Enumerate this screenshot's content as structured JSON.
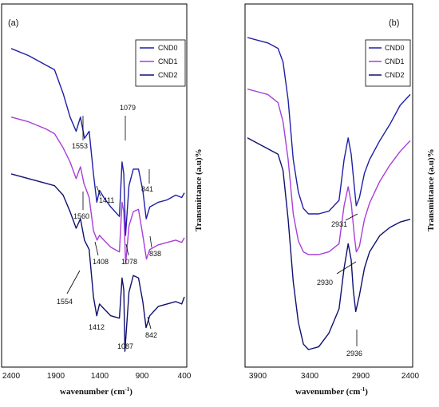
{
  "chart_data": [
    {
      "type": "line",
      "panel_label": "(a)",
      "xlabel": "wavenumber (cm",
      "xlabel_sup": "-1",
      "xlabel_end": ")",
      "ylabel": "Transmittance (a.u)%",
      "xlim": [
        2400,
        400
      ],
      "x_ticks": [
        "2400",
        "1900",
        "1400",
        "900",
        "400"
      ],
      "legend": [
        "CND0",
        "CND1",
        "CND2"
      ],
      "series": [
        {
          "name": "CND0",
          "color": "#1f1fa8",
          "offset": 0,
          "points": [
            [
              2400,
              0.93
            ],
            [
              2200,
              0.9
            ],
            [
              2000,
              0.86
            ],
            [
              1900,
              0.84
            ],
            [
              1800,
              0.74
            ],
            [
              1720,
              0.64
            ],
            [
              1650,
              0.58
            ],
            [
              1600,
              0.64
            ],
            [
              1553,
              0.55
            ],
            [
              1500,
              0.58
            ],
            [
              1450,
              0.4
            ],
            [
              1411,
              0.28
            ],
            [
              1380,
              0.33
            ],
            [
              1330,
              0.3
            ],
            [
              1250,
              0.26
            ],
            [
              1150,
              0.22
            ],
            [
              1120,
              0.45
            ],
            [
              1100,
              0.4
            ],
            [
              1079,
              0.14
            ],
            [
              1040,
              0.35
            ],
            [
              990,
              0.42
            ],
            [
              930,
              0.42
            ],
            [
              880,
              0.33
            ],
            [
              841,
              0.21
            ],
            [
              800,
              0.26
            ],
            [
              700,
              0.28
            ],
            [
              600,
              0.29
            ],
            [
              500,
              0.31
            ],
            [
              430,
              0.3
            ],
            [
              400,
              0.32
            ]
          ]
        },
        {
          "name": "CND1",
          "color": "#a83fd8",
          "offset": 0,
          "points": [
            [
              2400,
              0.64
            ],
            [
              2200,
              0.62
            ],
            [
              2000,
              0.59
            ],
            [
              1900,
              0.57
            ],
            [
              1800,
              0.51
            ],
            [
              1720,
              0.45
            ],
            [
              1650,
              0.38
            ],
            [
              1600,
              0.43
            ],
            [
              1560,
              0.36
            ],
            [
              1500,
              0.3
            ],
            [
              1450,
              0.16
            ],
            [
              1408,
              0.12
            ],
            [
              1380,
              0.14
            ],
            [
              1330,
              0.12
            ],
            [
              1250,
              0.09
            ],
            [
              1150,
              0.07
            ],
            [
              1120,
              0.28
            ],
            [
              1100,
              0.24
            ],
            [
              1078,
              0.02
            ],
            [
              1040,
              0.18
            ],
            [
              990,
              0.24
            ],
            [
              930,
              0.25
            ],
            [
              880,
              0.14
            ],
            [
              838,
              0.04
            ],
            [
              800,
              0.08
            ],
            [
              700,
              0.1
            ],
            [
              600,
              0.11
            ],
            [
              500,
              0.12
            ],
            [
              430,
              0.11
            ],
            [
              400,
              0.13
            ]
          ]
        },
        {
          "name": "CND2",
          "color": "#101070",
          "offset": 0,
          "points": [
            [
              2400,
              0.4
            ],
            [
              2200,
              0.38
            ],
            [
              2000,
              0.36
            ],
            [
              1900,
              0.35
            ],
            [
              1800,
              0.31
            ],
            [
              1720,
              0.24
            ],
            [
              1650,
              0.17
            ],
            [
              1600,
              0.21
            ],
            [
              1554,
              0.12
            ],
            [
              1500,
              0.08
            ],
            [
              1450,
              -0.12
            ],
            [
              1412,
              -0.2
            ],
            [
              1380,
              -0.15
            ],
            [
              1330,
              -0.17
            ],
            [
              1250,
              -0.2
            ],
            [
              1150,
              -0.21
            ],
            [
              1120,
              -0.04
            ],
            [
              1100,
              -0.09
            ],
            [
              1087,
              -0.35
            ],
            [
              1040,
              -0.1
            ],
            [
              990,
              -0.03
            ],
            [
              930,
              -0.04
            ],
            [
              880,
              -0.14
            ],
            [
              842,
              -0.25
            ],
            [
              800,
              -0.2
            ],
            [
              700,
              -0.16
            ],
            [
              600,
              -0.15
            ],
            [
              500,
              -0.14
            ],
            [
              430,
              -0.15
            ],
            [
              400,
              -0.12
            ]
          ]
        }
      ],
      "annotations": [
        {
          "text": "1553",
          "x": 1553
        },
        {
          "text": "1079",
          "x": 1079
        },
        {
          "text": "1411",
          "x": 1411
        },
        {
          "text": "841",
          "x": 841
        },
        {
          "text": "1560",
          "x": 1560
        },
        {
          "text": "1408",
          "x": 1408
        },
        {
          "text": "1078",
          "x": 1078
        },
        {
          "text": "838",
          "x": 838
        },
        {
          "text": "1554",
          "x": 1554
        },
        {
          "text": "1412",
          "x": 1412
        },
        {
          "text": "1087",
          "x": 1087
        },
        {
          "text": "842",
          "x": 842
        }
      ]
    },
    {
      "type": "line",
      "panel_label": "(b)",
      "xlabel": "wavenumber (cm",
      "xlabel_sup": "-1",
      "xlabel_end": ")",
      "ylabel": "Transmittance (a.u)%",
      "xlim": [
        4000,
        2400
      ],
      "x_ticks": [
        "3900",
        "3400",
        "2900",
        "2400"
      ],
      "legend": [
        "CND0",
        "CND1",
        "CND2"
      ],
      "series": [
        {
          "name": "CND0",
          "color": "#1f1fa8",
          "points": [
            [
              4000,
              0.95
            ],
            [
              3900,
              0.94
            ],
            [
              3800,
              0.93
            ],
            [
              3700,
              0.91
            ],
            [
              3650,
              0.86
            ],
            [
              3600,
              0.72
            ],
            [
              3550,
              0.5
            ],
            [
              3500,
              0.38
            ],
            [
              3450,
              0.32
            ],
            [
              3400,
              0.3
            ],
            [
              3300,
              0.3
            ],
            [
              3200,
              0.31
            ],
            [
              3100,
              0.35
            ],
            [
              3050,
              0.5
            ],
            [
              3010,
              0.58
            ],
            [
              2980,
              0.52
            ],
            [
              2950,
              0.4
            ],
            [
              2931,
              0.33
            ],
            [
              2900,
              0.36
            ],
            [
              2850,
              0.45
            ],
            [
              2800,
              0.5
            ],
            [
              2700,
              0.57
            ],
            [
              2600,
              0.63
            ],
            [
              2500,
              0.7
            ],
            [
              2400,
              0.74
            ]
          ]
        },
        {
          "name": "CND1",
          "color": "#a83fd8",
          "points": [
            [
              4000,
              0.76
            ],
            [
              3900,
              0.75
            ],
            [
              3800,
              0.74
            ],
            [
              3700,
              0.71
            ],
            [
              3650,
              0.64
            ],
            [
              3600,
              0.5
            ],
            [
              3550,
              0.3
            ],
            [
              3500,
              0.2
            ],
            [
              3450,
              0.16
            ],
            [
              3400,
              0.15
            ],
            [
              3300,
              0.15
            ],
            [
              3200,
              0.16
            ],
            [
              3100,
              0.19
            ],
            [
              3050,
              0.33
            ],
            [
              3010,
              0.4
            ],
            [
              2980,
              0.34
            ],
            [
              2950,
              0.22
            ],
            [
              2930,
              0.16
            ],
            [
              2900,
              0.18
            ],
            [
              2850,
              0.28
            ],
            [
              2800,
              0.34
            ],
            [
              2700,
              0.42
            ],
            [
              2600,
              0.48
            ],
            [
              2500,
              0.53
            ],
            [
              2400,
              0.57
            ]
          ]
        },
        {
          "name": "CND2",
          "color": "#101070",
          "points": [
            [
              4000,
              0.58
            ],
            [
              3900,
              0.56
            ],
            [
              3800,
              0.54
            ],
            [
              3700,
              0.52
            ],
            [
              3650,
              0.46
            ],
            [
              3600,
              0.28
            ],
            [
              3550,
              0.05
            ],
            [
              3500,
              -0.1
            ],
            [
              3450,
              -0.18
            ],
            [
              3400,
              -0.2
            ],
            [
              3300,
              -0.19
            ],
            [
              3200,
              -0.14
            ],
            [
              3100,
              -0.05
            ],
            [
              3050,
              0.1
            ],
            [
              3010,
              0.19
            ],
            [
              2980,
              0.13
            ],
            [
              2960,
              0.02
            ],
            [
              2936,
              -0.06
            ],
            [
              2900,
              0.0
            ],
            [
              2850,
              0.1
            ],
            [
              2800,
              0.16
            ],
            [
              2700,
              0.22
            ],
            [
              2600,
              0.25
            ],
            [
              2500,
              0.27
            ],
            [
              2400,
              0.28
            ]
          ]
        }
      ],
      "annotations": [
        {
          "text": "2931",
          "x": 2931
        },
        {
          "text": "2930",
          "x": 2930
        },
        {
          "text": "2936",
          "x": 2936
        }
      ]
    }
  ]
}
